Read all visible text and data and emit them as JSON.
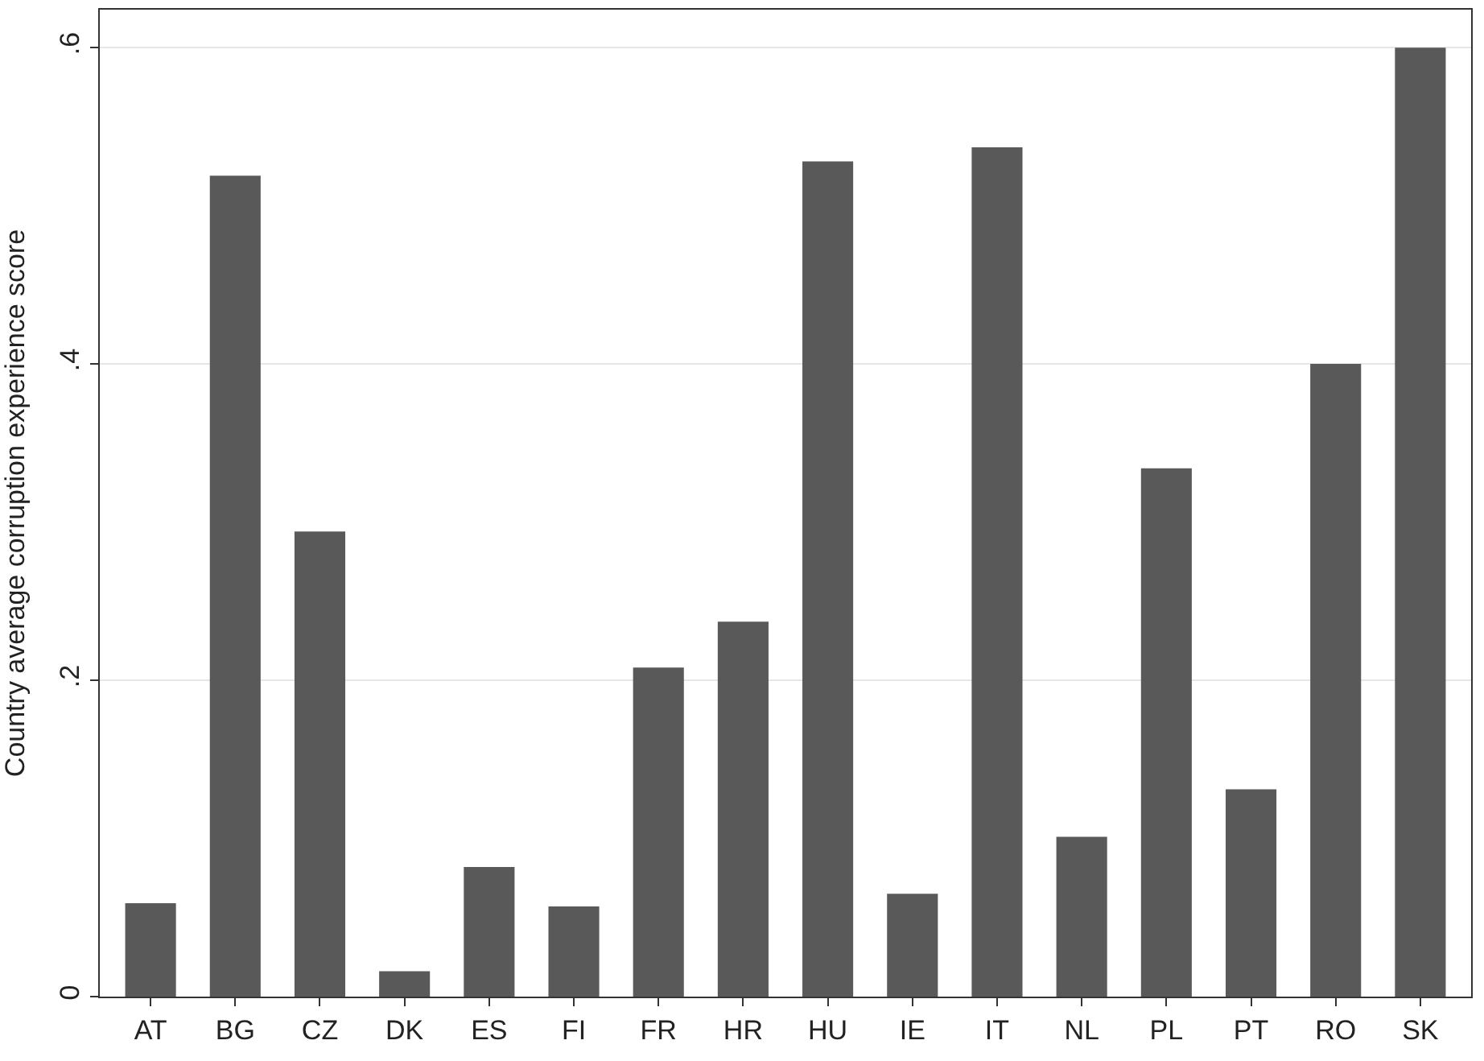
{
  "chart_data": {
    "type": "bar",
    "ylabel": "Country average corruption experience score",
    "categories": [
      "AT",
      "BG",
      "CZ",
      "DK",
      "ES",
      "FI",
      "FR",
      "HR",
      "HU",
      "IE",
      "IT",
      "NL",
      "PL",
      "PT",
      "RO",
      "SK"
    ],
    "values": [
      0.059,
      0.519,
      0.294,
      0.016,
      0.082,
      0.057,
      0.208,
      0.237,
      0.528,
      0.065,
      0.537,
      0.101,
      0.334,
      0.131,
      0.4,
      0.6
    ],
    "color": "#595959",
    "ylim": [
      0,
      0.624
    ],
    "yticks": [
      {
        "value": 0,
        "label": "0"
      },
      {
        "value": 0.2,
        "label": ".2"
      },
      {
        "value": 0.4,
        "label": ".4"
      },
      {
        "value": 0.6,
        "label": ".6"
      }
    ],
    "grid": "y",
    "legend": false
  }
}
